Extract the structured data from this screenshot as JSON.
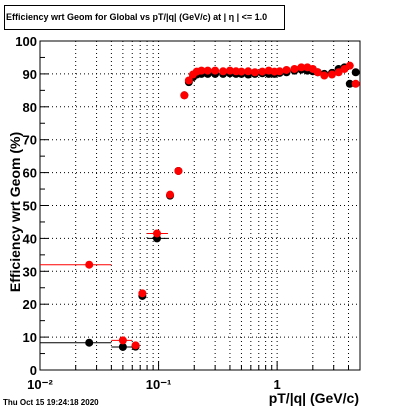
{
  "chart_data": {
    "type": "scatter",
    "title": "Efficiency wrt Geom for Global vs pT/|q| (GeV/c) at | η | <= 1.0",
    "xlabel": "pT/|q| (GeV/c)",
    "ylabel": "Efficiency wrt Geom (%)",
    "xscale": "log",
    "xlim": [
      0.01,
      5.0
    ],
    "ylim": [
      0,
      100
    ],
    "grid": true,
    "x_tick_labels": [
      "10⁻²",
      "10⁻¹",
      "1"
    ],
    "y_tick_labels": [
      "0",
      "10",
      "20",
      "30",
      "40",
      "50",
      "60",
      "70",
      "80",
      "90",
      "100"
    ],
    "series": [
      {
        "color": "#000000",
        "points": [
          {
            "x": 0.026,
            "y": 8.3,
            "xerr": [
              0.01,
              0.04
            ]
          },
          {
            "x": 0.05,
            "y": 7.0,
            "xerr": [
              0.04,
              0.06
            ]
          },
          {
            "x": 0.064,
            "y": 7.1
          },
          {
            "x": 0.073,
            "y": 22.5
          },
          {
            "x": 0.097,
            "y": 40.0,
            "xerr": [
              0.08,
              0.12
            ]
          },
          {
            "x": 0.125,
            "y": 53.0
          },
          {
            "x": 0.147,
            "y": 60.5
          },
          {
            "x": 0.165,
            "y": 83.5
          },
          {
            "x": 0.18,
            "y": 87.5
          },
          {
            "x": 0.195,
            "y": 89.0
          },
          {
            "x": 0.21,
            "y": 89.8
          },
          {
            "x": 0.23,
            "y": 90.0
          },
          {
            "x": 0.26,
            "y": 90.0
          },
          {
            "x": 0.3,
            "y": 90.0
          },
          {
            "x": 0.35,
            "y": 90.0
          },
          {
            "x": 0.4,
            "y": 90.2
          },
          {
            "x": 0.45,
            "y": 90.0
          },
          {
            "x": 0.5,
            "y": 90.0
          },
          {
            "x": 0.57,
            "y": 89.8
          },
          {
            "x": 0.65,
            "y": 90.0
          },
          {
            "x": 0.75,
            "y": 90.2
          },
          {
            "x": 0.85,
            "y": 90.0
          },
          {
            "x": 0.95,
            "y": 90.0
          },
          {
            "x": 1.05,
            "y": 90.3
          },
          {
            "x": 1.2,
            "y": 90.5
          },
          {
            "x": 1.4,
            "y": 91.0
          },
          {
            "x": 1.6,
            "y": 91.3
          },
          {
            "x": 1.8,
            "y": 91.0
          },
          {
            "x": 2.0,
            "y": 90.8
          },
          {
            "x": 2.2,
            "y": 90.5
          },
          {
            "x": 2.5,
            "y": 90.0
          },
          {
            "x": 2.9,
            "y": 90.3
          },
          {
            "x": 3.3,
            "y": 91.5
          },
          {
            "x": 3.7,
            "y": 92.0
          },
          {
            "x": 4.1,
            "y": 87.0
          },
          {
            "x": 4.6,
            "y": 90.5
          }
        ]
      },
      {
        "color": "#ff0000",
        "points": [
          {
            "x": 0.026,
            "y": 32.0,
            "xerr": [
              0.01,
              0.04
            ]
          },
          {
            "x": 0.05,
            "y": 9.0,
            "xerr": [
              0.04,
              0.06
            ]
          },
          {
            "x": 0.064,
            "y": 7.5
          },
          {
            "x": 0.073,
            "y": 23.3
          },
          {
            "x": 0.097,
            "y": 41.5,
            "xerr": [
              0.08,
              0.12
            ]
          },
          {
            "x": 0.125,
            "y": 53.3
          },
          {
            "x": 0.147,
            "y": 60.5
          },
          {
            "x": 0.165,
            "y": 83.5
          },
          {
            "x": 0.18,
            "y": 88.0
          },
          {
            "x": 0.195,
            "y": 89.8
          },
          {
            "x": 0.21,
            "y": 90.7
          },
          {
            "x": 0.23,
            "y": 91.0
          },
          {
            "x": 0.26,
            "y": 91.0
          },
          {
            "x": 0.3,
            "y": 91.0
          },
          {
            "x": 0.35,
            "y": 90.8
          },
          {
            "x": 0.4,
            "y": 91.0
          },
          {
            "x": 0.45,
            "y": 90.8
          },
          {
            "x": 0.5,
            "y": 90.7
          },
          {
            "x": 0.57,
            "y": 90.8
          },
          {
            "x": 0.65,
            "y": 90.5
          },
          {
            "x": 0.75,
            "y": 90.7
          },
          {
            "x": 0.85,
            "y": 91.0
          },
          {
            "x": 0.95,
            "y": 90.7
          },
          {
            "x": 1.05,
            "y": 90.8
          },
          {
            "x": 1.2,
            "y": 91.2
          },
          {
            "x": 1.4,
            "y": 91.5
          },
          {
            "x": 1.6,
            "y": 92.0
          },
          {
            "x": 1.8,
            "y": 92.0
          },
          {
            "x": 2.0,
            "y": 91.5
          },
          {
            "x": 2.2,
            "y": 90.5
          },
          {
            "x": 2.5,
            "y": 89.5
          },
          {
            "x": 2.9,
            "y": 89.8
          },
          {
            "x": 3.3,
            "y": 90.5
          },
          {
            "x": 3.7,
            "y": 91.5
          },
          {
            "x": 4.1,
            "y": 92.5
          },
          {
            "x": 4.6,
            "y": 87.0
          }
        ]
      }
    ]
  },
  "footer": {
    "timestamp": "Thu Oct 15 19:24:18 2020"
  }
}
